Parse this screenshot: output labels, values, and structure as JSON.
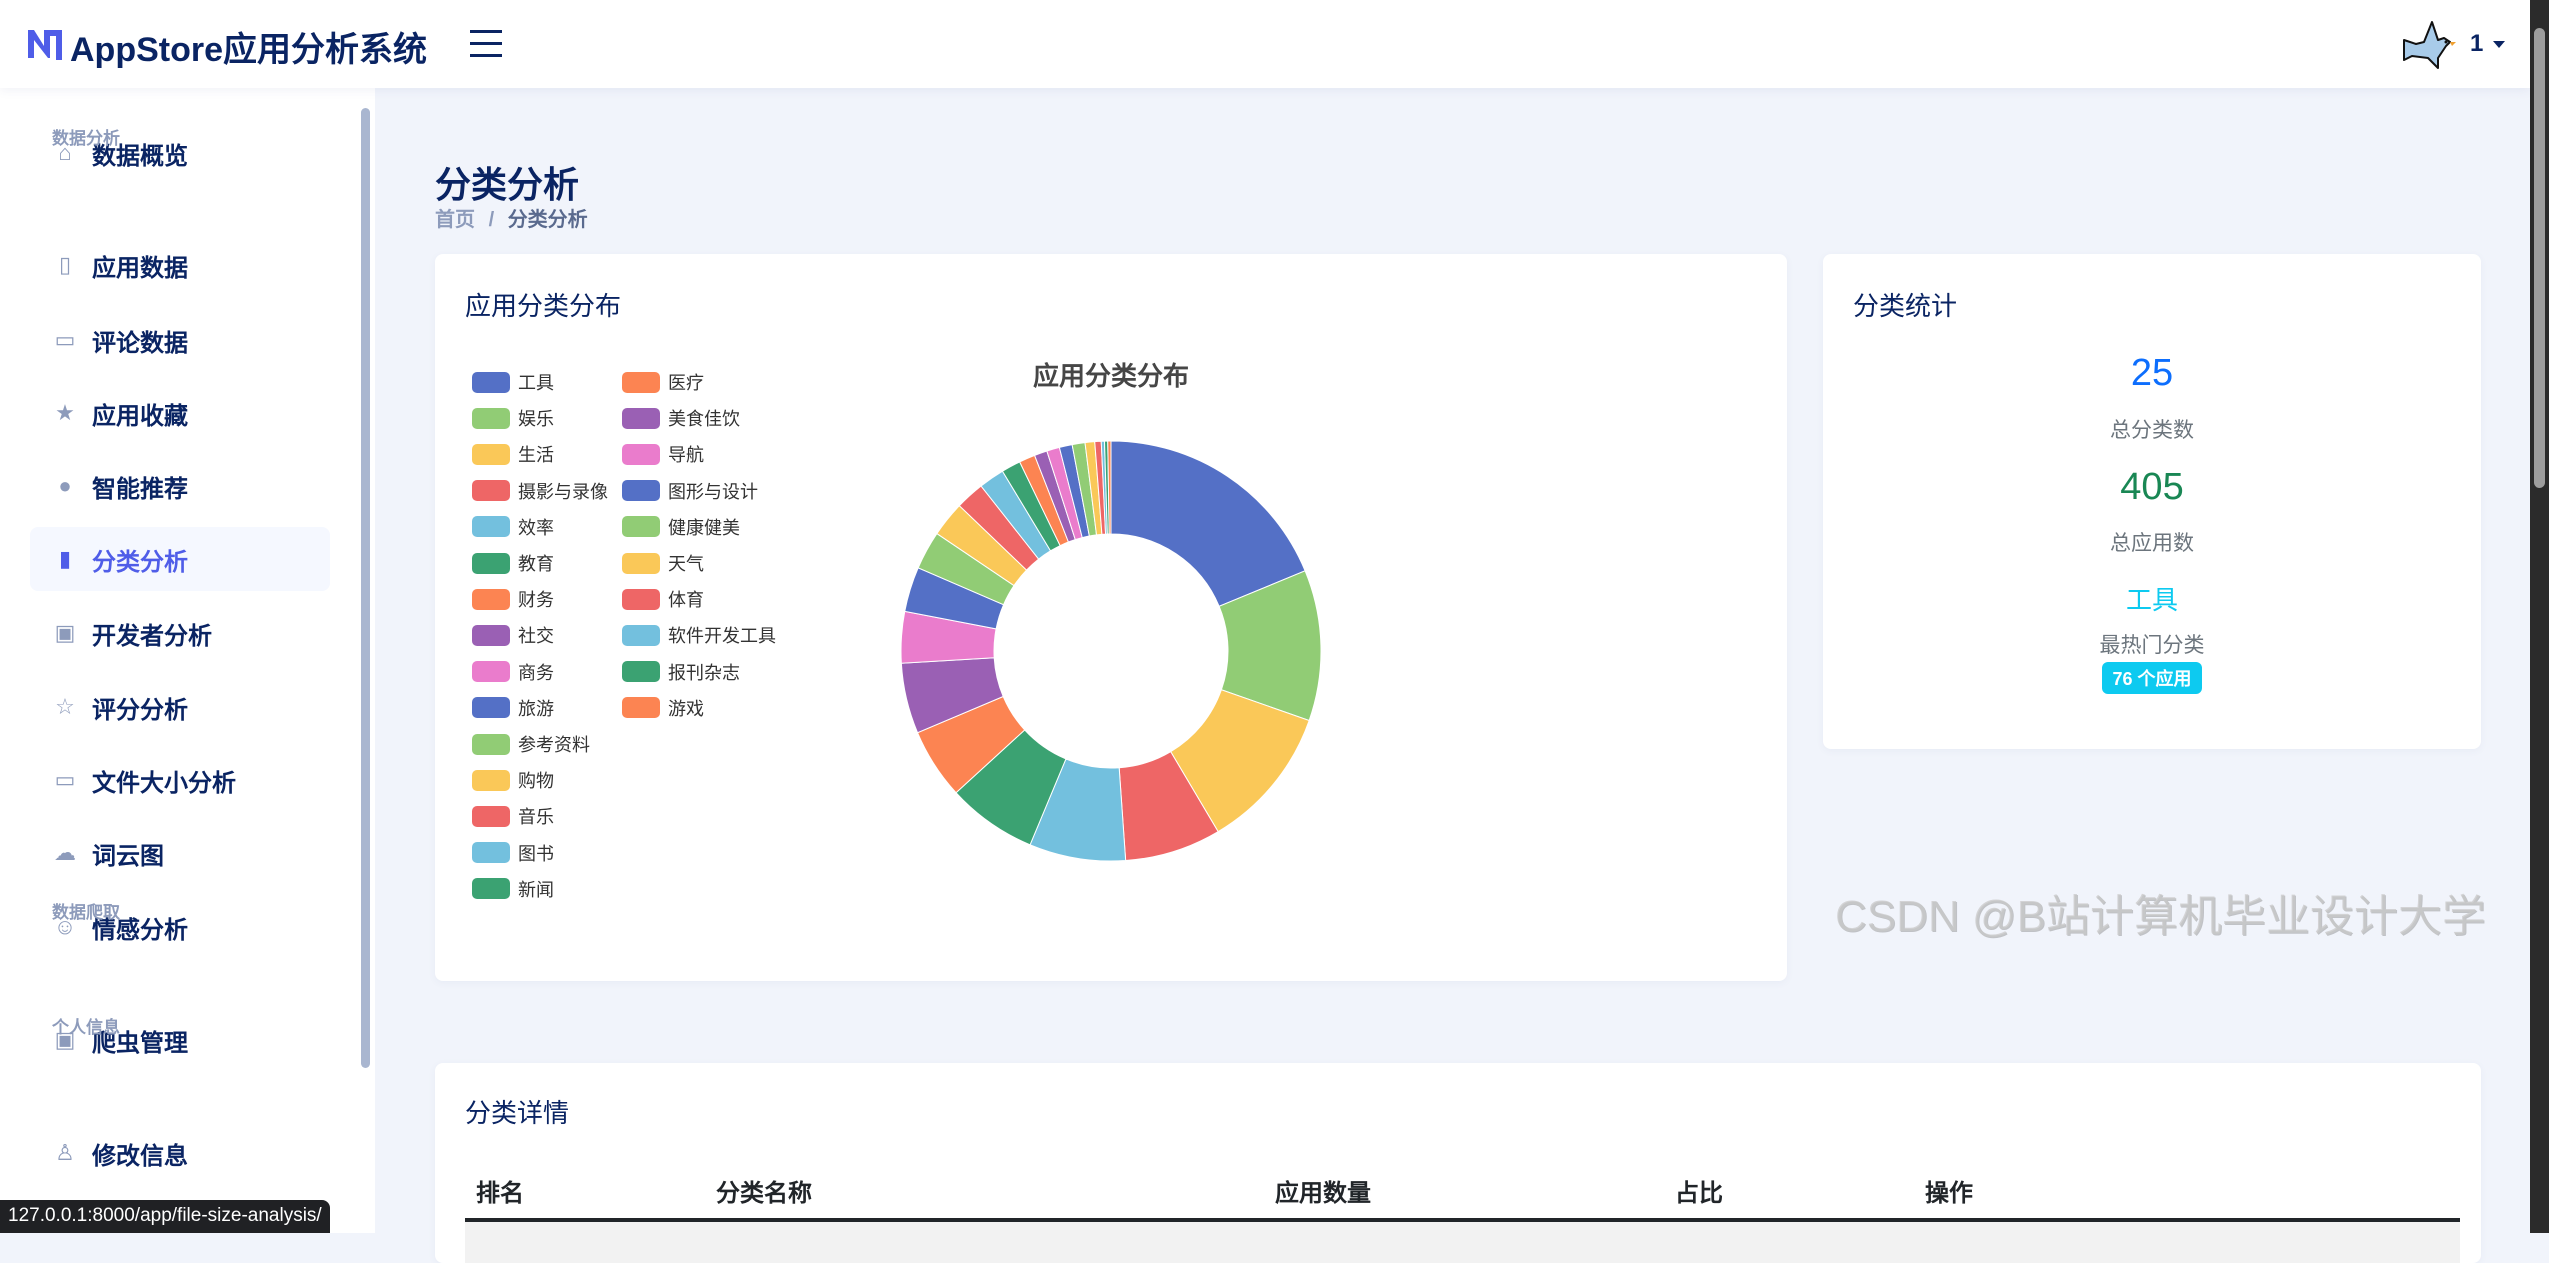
{
  "header": {
    "title": "AppStore应用分析系统",
    "user": "1",
    "avatar_icon": "bird-icon",
    "menu_icon": "hamburger-icon"
  },
  "sidebar": {
    "items": [
      {
        "label": "数据概览",
        "icon": "home-icon"
      },
      {
        "section": "数据分析"
      },
      {
        "label": "应用数据",
        "icon": "phone-icon"
      },
      {
        "label": "评论数据",
        "icon": "comment-icon"
      },
      {
        "label": "应用收藏",
        "icon": "star-filled-icon"
      },
      {
        "label": "智能推荐",
        "icon": "bulb-icon"
      },
      {
        "label": "分类分析",
        "icon": "bar-chart-icon",
        "active": true
      },
      {
        "label": "开发者分析",
        "icon": "badge-icon"
      },
      {
        "label": "评分分析",
        "icon": "star-icon"
      },
      {
        "label": "文件大小分析",
        "icon": "drive-icon"
      },
      {
        "label": "词云图",
        "icon": "cloud-icon"
      },
      {
        "label": "情感分析",
        "icon": "smile-icon"
      },
      {
        "section": "数据爬取"
      },
      {
        "label": "爬虫管理",
        "icon": "robot-icon"
      },
      {
        "section": "个人信息"
      },
      {
        "label": "修改信息",
        "icon": "user-icon"
      }
    ]
  },
  "page": {
    "title": "分类分析",
    "breadcrumb": [
      "首页",
      "分类分析"
    ],
    "separator": "/"
  },
  "distribution_card": {
    "title": "应用分类分布"
  },
  "chart_data": {
    "type": "pie",
    "title": "应用分类分布",
    "donut": true,
    "legend_position": "left",
    "categories": [
      "工具",
      "娱乐",
      "生活",
      "摄影与录像",
      "效率",
      "教育",
      "财务",
      "社交",
      "商务",
      "旅游",
      "参考资料",
      "购物",
      "音乐",
      "图书",
      "新闻",
      "医疗",
      "美食佳饮",
      "导航",
      "图形与设计",
      "健康健美",
      "天气",
      "体育",
      "软件开发工具",
      "报刊杂志",
      "游戏"
    ],
    "values": [
      76,
      47,
      45,
      30,
      30,
      28,
      22,
      22,
      16,
      14,
      12,
      11,
      9,
      8,
      6,
      5,
      4,
      4,
      4,
      4,
      3,
      2,
      1,
      1,
      1
    ],
    "colors": [
      "#5470c6",
      "#91cc75",
      "#fac858",
      "#ee6666",
      "#73c0de",
      "#3ba272",
      "#fc8452",
      "#9a60b4",
      "#ea7ccc"
    ]
  },
  "stats_card": {
    "title": "分类统计",
    "total_categories": "25",
    "total_categories_label": "总分类数",
    "total_apps": "405",
    "total_apps_label": "总应用数",
    "top_category": "工具",
    "top_category_label": "最热门分类",
    "top_badge": "76 个应用",
    "colors": {
      "blue": "#0d6efd",
      "green": "#198754",
      "cyan": "#0dcaf0"
    }
  },
  "detail_card": {
    "title": "分类详情",
    "columns": [
      "排名",
      "分类名称",
      "应用数量",
      "占比",
      "操作"
    ]
  },
  "status_url": "127.0.0.1:8000/app/file-size-analysis/",
  "watermark": "CSDN @B站计算机毕业设计大学"
}
